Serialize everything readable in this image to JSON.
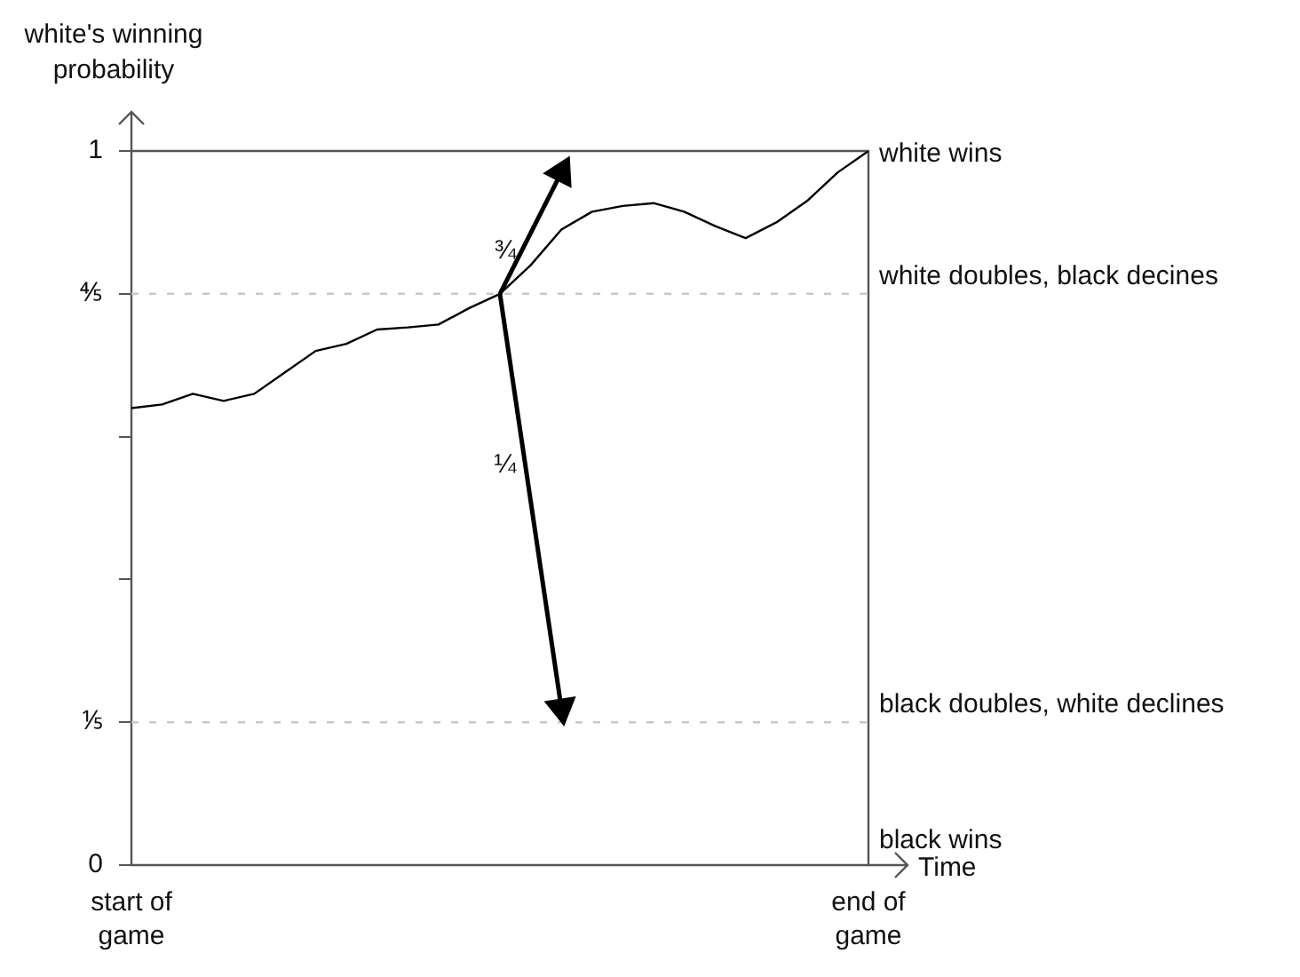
{
  "chart_data": {
    "type": "line",
    "ylabel": "white's winning probability",
    "xlabel": "Time",
    "categories": [
      "start of game",
      null,
      null,
      null,
      null,
      null,
      null,
      null,
      null,
      null,
      null,
      null,
      null,
      null,
      null,
      null,
      null,
      null,
      null,
      null,
      null,
      null,
      null,
      null,
      "end of game"
    ],
    "ylim": [
      0,
      1
    ],
    "yticks": [
      0,
      {
        "value": 0.2,
        "label": "⅕"
      },
      {
        "value": 0.4,
        "label": null
      },
      {
        "value": 0.6,
        "label": null
      },
      {
        "value": 0.8,
        "label": "⅘"
      },
      1
    ],
    "grid": false,
    "legend": false,
    "marker": "none",
    "annotations": [
      "white wins",
      "black wins"
    ],
    "series": [
      {
        "type": "line",
        "color": "#000000",
        "values": [
          0.64,
          0.645,
          0.66,
          0.65,
          0.66,
          0.69,
          0.72,
          0.73,
          0.75,
          0.753,
          0.757,
          0.78,
          0.8,
          0.84,
          0.89,
          0.915,
          0.923,
          0.927,
          0.915,
          0.895,
          0.878,
          0.9,
          0.93,
          0.97,
          1
        ]
      },
      {
        "type": "line",
        "name": "¾",
        "color": "#000000",
        "marker": "triangle",
        "values": [
          null,
          null,
          null,
          null,
          null,
          null,
          null,
          null,
          null,
          null,
          null,
          null,
          0.8,
          null,
          0.97,
          null,
          null,
          null,
          null,
          null,
          null,
          null,
          null,
          null,
          null
        ]
      },
      {
        "type": "line",
        "name": "¼",
        "color": "#000000",
        "marker": "triangle",
        "values": [
          null,
          null,
          null,
          null,
          null,
          null,
          null,
          null,
          null,
          null,
          null,
          null,
          0.8,
          null,
          0.22,
          null,
          null,
          null,
          null,
          null,
          null,
          null,
          null,
          null,
          null
        ]
      }
    ],
    "ref_lines": [
      {
        "axis": "y",
        "value": 0.8,
        "label": "white doubles, black decines",
        "color": "#c8c8c8",
        "line_style": "dashed"
      },
      {
        "axis": "y",
        "value": 0.2,
        "label": "black doubles, white declines",
        "color": "#c8c8c8",
        "line_style": "dashed"
      }
    ]
  }
}
